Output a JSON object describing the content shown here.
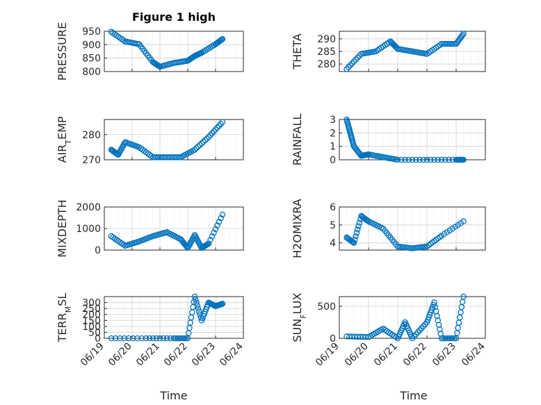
{
  "figure": {
    "title": "Figure 1 high",
    "xlabel": "Time",
    "x_tick_labels": [
      "06/19",
      "06/20",
      "06/21",
      "06/22",
      "06/23",
      "06/24"
    ],
    "colors": {
      "marker": "#0072bd",
      "axes": "#262626",
      "grid": "#e0e0e0"
    }
  },
  "chart_data": [
    {
      "type": "scatter",
      "title": "Figure 1 high",
      "ylabel": "PRESSURE",
      "ylim": [
        800,
        950
      ],
      "yticks": [
        800,
        850,
        900,
        950
      ],
      "grid": true,
      "x": [
        "06/19 06:00",
        "06/19 18:00",
        "06/20 06:00",
        "06/20 18:00",
        "06/21 00:00",
        "06/21 12:00",
        "06/22 00:00",
        "06/22 06:00",
        "06/22 12:00",
        "06/23 00:00",
        "06/23 06:00"
      ],
      "y": [
        948,
        912,
        902,
        835,
        818,
        832,
        840,
        858,
        870,
        902,
        921
      ]
    },
    {
      "type": "scatter",
      "ylabel": "THETA",
      "ylim": [
        277,
        293
      ],
      "yticks": [
        280,
        285,
        290
      ],
      "grid": true,
      "x": [
        "06/19 06:00",
        "06/19 18:00",
        "06/20 06:00",
        "06/20 18:00",
        "06/21 00:00",
        "06/21 12:00",
        "06/22 00:00",
        "06/22 12:00",
        "06/23 00:00",
        "06/23 06:00"
      ],
      "y": [
        278,
        284,
        285,
        289,
        286,
        285,
        284,
        288,
        288,
        292
      ]
    },
    {
      "type": "scatter",
      "ylabel": "AIR_TEMP",
      "ylim": [
        270,
        286
      ],
      "yticks": [
        270,
        280
      ],
      "grid": true,
      "x": [
        "06/19 06:00",
        "06/19 12:00",
        "06/19 18:00",
        "06/20 06:00",
        "06/20 18:00",
        "06/21 06:00",
        "06/21 18:00",
        "06/22 06:00",
        "06/22 18:00",
        "06/23 06:00"
      ],
      "y": [
        274,
        272,
        277,
        275,
        271,
        271,
        271,
        274,
        279,
        285
      ]
    },
    {
      "type": "scatter",
      "ylabel": "RAINFALL",
      "ylim": [
        0,
        3
      ],
      "yticks": [
        0,
        1,
        2,
        3
      ],
      "grid": true,
      "x": [
        "06/19 06:00",
        "06/19 09:00",
        "06/19 12:00",
        "06/19 18:00",
        "06/20 00:00",
        "06/20 12:00",
        "06/21 00:00",
        "06/22 00:00",
        "06/23 00:00",
        "06/23 06:00"
      ],
      "y": [
        3,
        2,
        1,
        0.3,
        0.4,
        0.2,
        0,
        0,
        0,
        0
      ]
    },
    {
      "type": "scatter",
      "ylabel": "MIXDEPTH",
      "ylim": [
        0,
        2000
      ],
      "yticks": [
        0,
        1000,
        2000
      ],
      "grid": true,
      "x": [
        "06/19 06:00",
        "06/19 18:00",
        "06/20 06:00",
        "06/20 18:00",
        "06/21 06:00",
        "06/21 18:00",
        "06/22 00:00",
        "06/22 06:00",
        "06/22 12:00",
        "06/22 18:00",
        "06/23 06:00"
      ],
      "y": [
        650,
        200,
        400,
        650,
        830,
        500,
        100,
        700,
        100,
        300,
        1650
      ]
    },
    {
      "type": "scatter",
      "ylabel": "H2OMIXRA",
      "ylim": [
        3.6,
        6
      ],
      "yticks": [
        4,
        5,
        6
      ],
      "grid": true,
      "x": [
        "06/19 06:00",
        "06/19 12:00",
        "06/19 18:00",
        "06/20 00:00",
        "06/20 12:00",
        "06/21 00:00",
        "06/21 12:00",
        "06/22 00:00",
        "06/22 12:00",
        "06/23 06:00"
      ],
      "y": [
        4.3,
        4.0,
        5.5,
        5.2,
        4.8,
        3.8,
        3.7,
        3.8,
        4.4,
        5.2
      ]
    },
    {
      "type": "scatter",
      "ylabel": "TERR_MSL",
      "ylim": [
        0,
        350
      ],
      "yticks": [
        0,
        50,
        100,
        150,
        200,
        250,
        300
      ],
      "grid": true,
      "x": [
        "06/19 06:00",
        "06/20 12:00",
        "06/21 12:00",
        "06/22 00:00",
        "06/22 06:00",
        "06/22 12:00",
        "06/22 18:00",
        "06/23 00:00",
        "06/23 06:00"
      ],
      "y": [
        0,
        0,
        0,
        0,
        350,
        150,
        300,
        270,
        290
      ]
    },
    {
      "type": "scatter",
      "ylabel": "SUN_FLUX",
      "ylim": [
        0,
        650
      ],
      "yticks": [
        0,
        500
      ],
      "grid": true,
      "x": [
        "06/19 06:00",
        "06/20 00:00",
        "06/20 12:00",
        "06/21 00:00",
        "06/21 06:00",
        "06/21 12:00",
        "06/22 00:00",
        "06/22 06:00",
        "06/22 12:00",
        "06/23 00:00",
        "06/23 06:00"
      ],
      "y": [
        30,
        20,
        150,
        0,
        250,
        0,
        250,
        560,
        0,
        0,
        650
      ]
    }
  ]
}
